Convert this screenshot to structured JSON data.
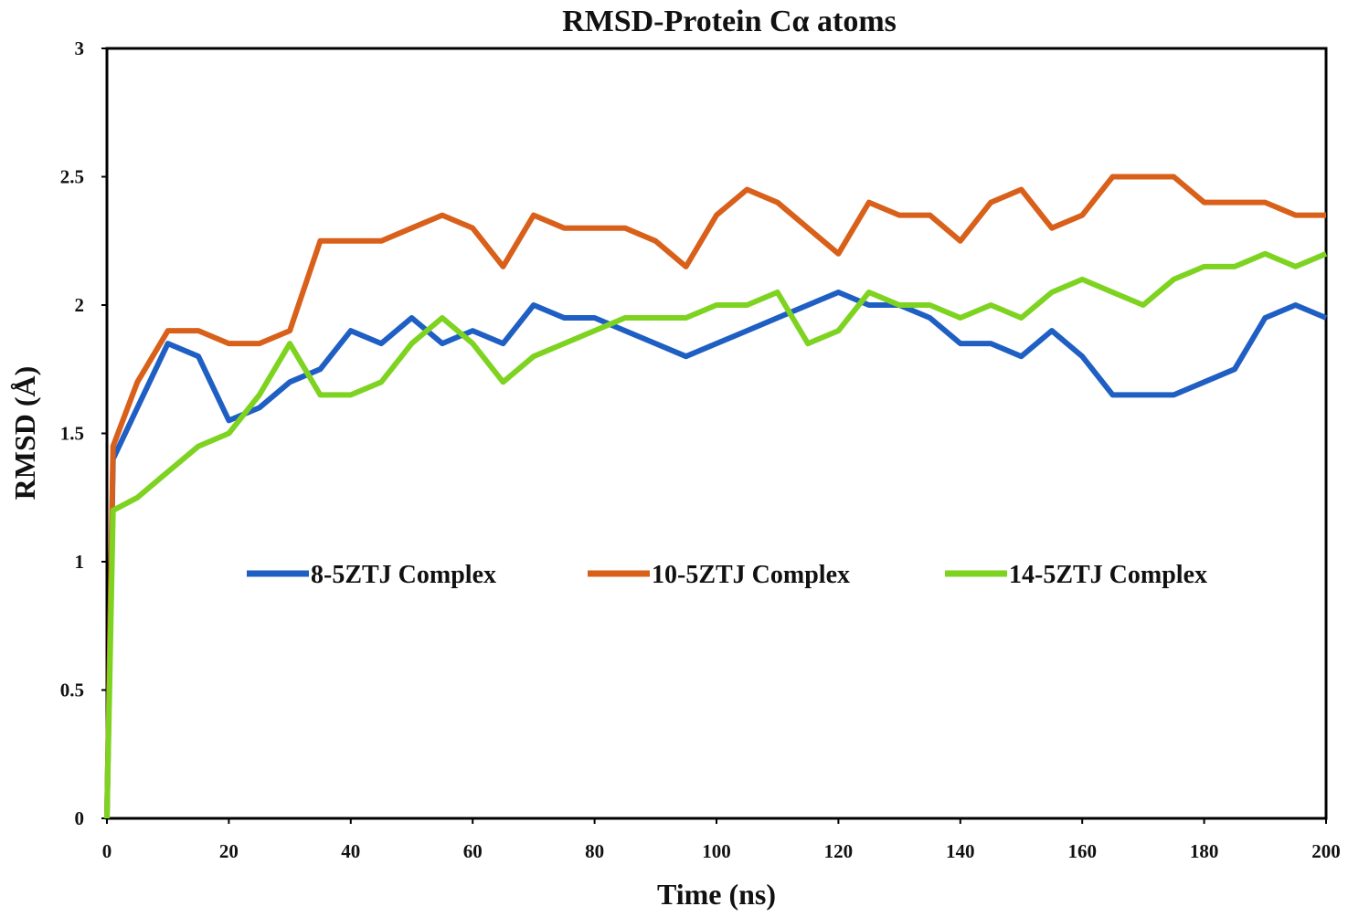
{
  "chart_data": {
    "type": "line",
    "title": "RMSD-Protein Cα atoms",
    "xlabel": "Time (ns)",
    "ylabel": "RMSD (Å)",
    "xlim": [
      0,
      200
    ],
    "ylim": [
      0,
      3
    ],
    "xticks": [
      "0",
      "20",
      "40",
      "60",
      "80",
      "100",
      "120",
      "140",
      "160",
      "180",
      "200"
    ],
    "yticks": [
      "0",
      "0.5",
      "1",
      "1.5",
      "2",
      "2.5",
      "3"
    ],
    "grid": false,
    "legend_position": "center",
    "x": [
      0,
      1,
      5,
      10,
      15,
      20,
      25,
      30,
      35,
      40,
      45,
      50,
      55,
      60,
      65,
      70,
      75,
      80,
      85,
      90,
      95,
      100,
      105,
      110,
      115,
      120,
      125,
      130,
      135,
      140,
      145,
      150,
      155,
      160,
      165,
      170,
      175,
      180,
      185,
      190,
      195,
      200
    ],
    "series": [
      {
        "name": "8-5ZTJ Complex",
        "color": "#1f5fc4",
        "values": [
          0,
          1.4,
          1.6,
          1.85,
          1.8,
          1.55,
          1.6,
          1.7,
          1.75,
          1.9,
          1.85,
          1.95,
          1.85,
          1.9,
          1.85,
          2.0,
          1.95,
          1.95,
          1.9,
          1.85,
          1.8,
          1.85,
          1.9,
          1.95,
          2.0,
          2.05,
          2.0,
          2.0,
          1.95,
          1.85,
          1.85,
          1.8,
          1.9,
          1.8,
          1.65,
          1.65,
          1.65,
          1.7,
          1.75,
          1.95,
          2.0,
          1.95
        ]
      },
      {
        "name": "10-5ZTJ Complex",
        "color": "#d9601a",
        "values": [
          0,
          1.45,
          1.7,
          1.9,
          1.9,
          1.85,
          1.85,
          1.9,
          2.25,
          2.25,
          2.25,
          2.3,
          2.35,
          2.3,
          2.15,
          2.35,
          2.3,
          2.3,
          2.3,
          2.25,
          2.15,
          2.35,
          2.45,
          2.4,
          2.3,
          2.2,
          2.4,
          2.35,
          2.35,
          2.25,
          2.4,
          2.45,
          2.3,
          2.35,
          2.5,
          2.5,
          2.5,
          2.4,
          2.4,
          2.4,
          2.35,
          2.35
        ]
      },
      {
        "name": "14-5ZTJ Complex",
        "color": "#7ed321",
        "values": [
          0,
          1.2,
          1.25,
          1.35,
          1.45,
          1.5,
          1.65,
          1.85,
          1.65,
          1.65,
          1.7,
          1.85,
          1.95,
          1.85,
          1.7,
          1.8,
          1.85,
          1.9,
          1.95,
          1.95,
          1.95,
          2.0,
          2.0,
          2.05,
          1.85,
          1.9,
          2.05,
          2.0,
          2.0,
          1.95,
          2.0,
          1.95,
          2.05,
          2.1,
          2.05,
          2.0,
          2.1,
          2.15,
          2.15,
          2.2,
          2.15,
          2.2
        ]
      }
    ]
  }
}
